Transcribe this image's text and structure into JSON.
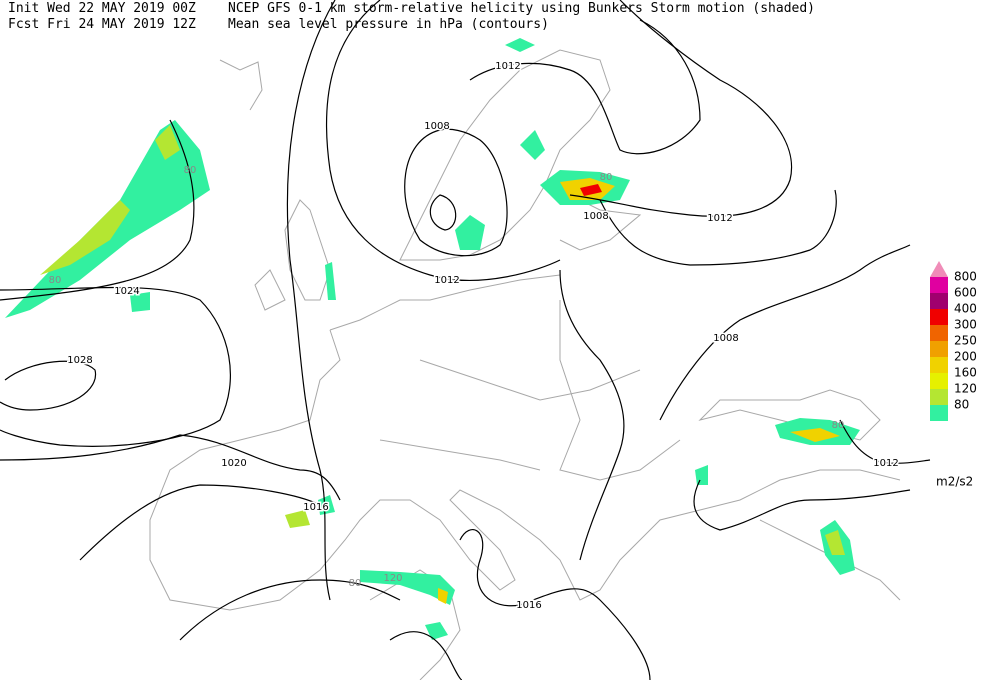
{
  "header": {
    "init": "Init  Wed 22 MAY 2019 00Z",
    "fcst": "Fcst Fri 24 MAY 2019 12Z",
    "field_shaded": "NCEP GFS 0-1 km storm-relative helicity using Bunkers Storm motion (shaded)",
    "field_contours": "Mean sea level pressure in hPa (contours)"
  },
  "legend": {
    "levels": [
      "800",
      "600",
      "400",
      "300",
      "250",
      "200",
      "160",
      "120",
      "80"
    ],
    "colors": [
      "#f08cb8",
      "#e000a0",
      "#a0006e",
      "#f00000",
      "#f06400",
      "#f0a000",
      "#f0d200",
      "#e6f000",
      "#b4e632",
      "#32f0a0"
    ],
    "unit": "m2/s2"
  },
  "contour_labels": [
    "1012",
    "1008",
    "1012",
    "1008",
    "1012",
    "1024",
    "1028",
    "1008",
    "1012",
    "1020",
    "1016",
    "1016"
  ],
  "shade_labels": [
    "80",
    "80",
    "80",
    "80",
    "120",
    "80"
  ]
}
